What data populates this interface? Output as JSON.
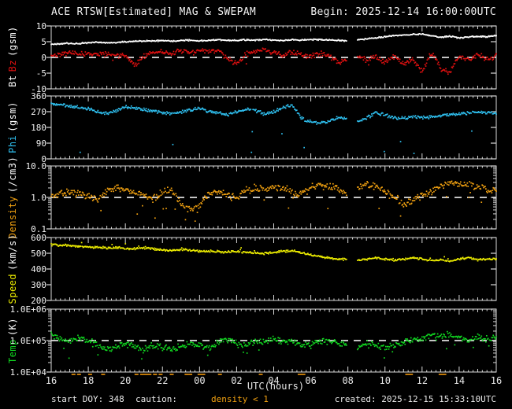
{
  "header": {
    "title": "ACE RTSW[Estimated] MAG & SWEPAM",
    "begin_label": "Begin: 2025-12-14 16:00:00UTC"
  },
  "footer": {
    "start_doy": "start DOY: 348",
    "caution_label": "caution:",
    "caution_value": "density < 1",
    "created": "created: 2025-12-15 15:33:10UTC"
  },
  "colors": {
    "background": "#000000",
    "frame": "#d8d8d8",
    "text": "#f2f2f2",
    "bt": "#ffffff",
    "bz": "#e01010",
    "phi": "#2fc0f0",
    "density": "#f0a010",
    "speed": "#f0f000",
    "temp": "#10d820",
    "caution": "#c07808",
    "ref_dash": "#e0e0e0"
  },
  "chart_data": {
    "type": "line",
    "title": "ACE RTSW[Estimated] MAG & SWEPAM",
    "x_axis": {
      "label": "UTC(hours)",
      "start": "2025-12-14 16:00 UTC",
      "span_hours": 24,
      "tick_labels": [
        "16",
        "18",
        "20",
        "22",
        "00",
        "02",
        "04",
        "06",
        "08",
        "10",
        "12",
        "14",
        "16"
      ],
      "major_tick_every_hours": 2,
      "minor_tick_every_hours": 0.25
    },
    "gap_hours": [
      15.95,
      16.5
    ],
    "caution_marks_hours": [
      1.2,
      1.5,
      2.1,
      2.8,
      4.6,
      4.9,
      5.1,
      5.3,
      5.6,
      5.9,
      6.5,
      7.3,
      7.5,
      8.0,
      8.2,
      9.1,
      11.3,
      13.4,
      13.6,
      19.2,
      19.4,
      21.0,
      21.2
    ],
    "anchors_t0": 0,
    "anchors_dt_hours": 0.5,
    "panels": [
      {
        "name": "bt-bz",
        "scale": "linear",
        "ymin": -10,
        "ymax": 10,
        "yticks": [
          {
            "v": 10,
            "label": "10"
          },
          {
            "v": 5,
            "label": "5"
          },
          {
            "v": 0,
            "label": "0"
          },
          {
            "v": -5,
            "label": "-5"
          },
          {
            "v": -10,
            "label": "-10"
          }
        ],
        "ref_line": 0,
        "ylabel": [
          {
            "text": "Bt",
            "color": "#ffffff"
          },
          {
            "text": "Bz",
            "color": "#e01010"
          },
          {
            "text": "(gsm)",
            "color": "#ffffff"
          }
        ],
        "series": [
          {
            "name": "Bz",
            "color": "#e01010",
            "noise": 0.7,
            "outlier_prob": 0.015,
            "outlier_amp": -2.5,
            "values": [
              0.6,
              1.2,
              1.5,
              1.0,
              1.3,
              0.8,
              1.2,
              0.7,
              0.3,
              -2.5,
              0.5,
              1.5,
              1.8,
              1.2,
              2.0,
              1.5,
              2.2,
              1.8,
              2.5,
              -0.5,
              -2.0,
              1.0,
              2.0,
              2.5,
              1.5,
              0.5,
              1.8,
              1.0,
              0.2,
              1.2,
              0.5,
              -1.5,
              -0.5,
              0.8,
              -1.0,
              0.5,
              -1.5,
              0.3,
              -2.0,
              -0.5,
              -4.5,
              1.5,
              -3.5,
              -4.8,
              0.5,
              -1.0,
              1.0,
              -0.8,
              0.3
            ]
          },
          {
            "name": "Bt",
            "color": "#ffffff",
            "noise": 0.18,
            "outlier_prob": 0,
            "outlier_amp": 0,
            "values": [
              4.2,
              4.4,
              4.5,
              4.4,
              4.7,
              4.9,
              4.6,
              4.8,
              5.0,
              5.1,
              5.2,
              5.3,
              5.3,
              5.2,
              5.4,
              5.5,
              5.3,
              5.4,
              5.6,
              5.5,
              5.4,
              5.6,
              5.5,
              5.7,
              5.5,
              5.4,
              5.6,
              5.5,
              5.7,
              5.6,
              5.5,
              5.4,
              5.3,
              5.6,
              5.9,
              6.2,
              6.6,
              6.9,
              7.1,
              7.3,
              7.4,
              6.9,
              6.4,
              6.8,
              6.2,
              6.5,
              6.7,
              6.6,
              6.9
            ]
          }
        ]
      },
      {
        "name": "phi",
        "scale": "linear",
        "ymin": 0,
        "ymax": 360,
        "yticks": [
          {
            "v": 360,
            "label": "360"
          },
          {
            "v": 270,
            "label": "270"
          },
          {
            "v": 180,
            "label": "180"
          },
          {
            "v": 90,
            "label": "90"
          },
          {
            "v": 0,
            "label": "0"
          }
        ],
        "ref_line": null,
        "ylabel": [
          {
            "text": "Phi",
            "color": "#2fc0f0"
          },
          {
            "text": "(gsm)",
            "color": "#ffffff"
          }
        ],
        "series": [
          {
            "name": "Phi",
            "color": "#2fc0f0",
            "noise": 8,
            "outlier_prob": 0.012,
            "outlier_amp": -200,
            "values": [
              315,
              310,
              300,
              295,
              285,
              268,
              262,
              278,
              298,
              290,
              282,
              272,
              265,
              258,
              268,
              280,
              292,
              272,
              263,
              253,
              268,
              283,
              278,
              258,
              268,
              295,
              308,
              232,
              215,
              205,
              218,
              238,
              228,
              214,
              232,
              262,
              250,
              232,
              235,
              242,
              236,
              241,
              246,
              251,
              258,
              263,
              268,
              264,
              262
            ]
          }
        ]
      },
      {
        "name": "density",
        "scale": "log",
        "ymin": 0.1,
        "ymax": 10,
        "yticks": [
          {
            "v": 10,
            "label": "10.0"
          },
          {
            "v": 1,
            "label": "1.0"
          },
          {
            "v": 0.1,
            "label": "0.1"
          }
        ],
        "ref_line": 1,
        "ylabel": [
          {
            "text": "Density",
            "color": "#f0a010"
          },
          {
            "text": "(/cm3)",
            "color": "#ffffff"
          }
        ],
        "series": [
          {
            "name": "Density",
            "color": "#f0a010",
            "noise": 0.1,
            "outlier_prob": 0.025,
            "outlier_amp": -0.45,
            "values": [
              1.2,
              1.4,
              1.5,
              1.3,
              1.1,
              0.8,
              1.6,
              2.1,
              1.8,
              1.4,
              1.2,
              0.9,
              1.4,
              1.7,
              0.6,
              0.4,
              0.5,
              1.3,
              1.6,
              1.2,
              0.9,
              1.7,
              2.0,
              1.8,
              2.2,
              2.0,
              1.5,
              1.2,
              2.0,
              2.4,
              2.2,
              1.7,
              1.4,
              2.0,
              2.7,
              2.2,
              1.5,
              1.0,
              0.6,
              0.8,
              1.2,
              1.5,
              2.4,
              2.9,
              2.5,
              2.7,
              2.2,
              1.8,
              1.6
            ]
          }
        ]
      },
      {
        "name": "speed",
        "scale": "linear",
        "ymin": 200,
        "ymax": 600,
        "yticks": [
          {
            "v": 600,
            "label": "600"
          },
          {
            "v": 500,
            "label": "500"
          },
          {
            "v": 400,
            "label": "400"
          },
          {
            "v": 300,
            "label": "300"
          },
          {
            "v": 200,
            "label": "200"
          }
        ],
        "ref_line": null,
        "ylabel": [
          {
            "text": "Speed",
            "color": "#f0f000"
          },
          {
            "text": "(km/s)",
            "color": "#ffffff"
          }
        ],
        "series": [
          {
            "name": "Speed",
            "color": "#f0f000",
            "noise": 6,
            "outlier_prob": 0.02,
            "outlier_amp": 18,
            "values": [
              556,
              552,
              548,
              544,
              541,
              537,
              534,
              538,
              532,
              528,
              535,
              528,
              522,
              518,
              524,
              518,
              514,
              510,
              512,
              508,
              512,
              506,
              502,
              498,
              505,
              512,
              515,
              505,
              492,
              480,
              470,
              464,
              458,
              454,
              463,
              470,
              464,
              458,
              462,
              470,
              464,
              454,
              459,
              450,
              464,
              470,
              459,
              464,
              461
            ]
          }
        ]
      },
      {
        "name": "temp",
        "scale": "log",
        "ymin": 10000,
        "ymax": 1000000,
        "yticks": [
          {
            "v": 1000000,
            "label": "1.0E+06"
          },
          {
            "v": 100000,
            "label": "1.0E+05"
          },
          {
            "v": 10000,
            "label": "1.0E+04"
          }
        ],
        "ref_line": 100000,
        "ylabel": [
          {
            "text": "Temp",
            "color": "#10d820"
          },
          {
            "text": "(K)",
            "color": "#ffffff"
          }
        ],
        "series": [
          {
            "name": "Temp",
            "color": "#10d820",
            "noise": 0.09,
            "outlier_prob": 0.03,
            "outlier_amp": -0.3,
            "values": [
              160000,
              110000,
              90000,
              120000,
              100000,
              70000,
              50000,
              60000,
              80000,
              60000,
              50000,
              70000,
              60000,
              50000,
              65000,
              80000,
              70000,
              60000,
              90000,
              110000,
              80000,
              70000,
              90000,
              100000,
              110000,
              90000,
              100000,
              80000,
              70000,
              90000,
              100000,
              80000,
              70000,
              60000,
              80000,
              70000,
              60000,
              70000,
              90000,
              100000,
              120000,
              150000,
              130000,
              160000,
              120000,
              100000,
              130000,
              110000,
              120000
            ]
          }
        ]
      }
    ]
  }
}
